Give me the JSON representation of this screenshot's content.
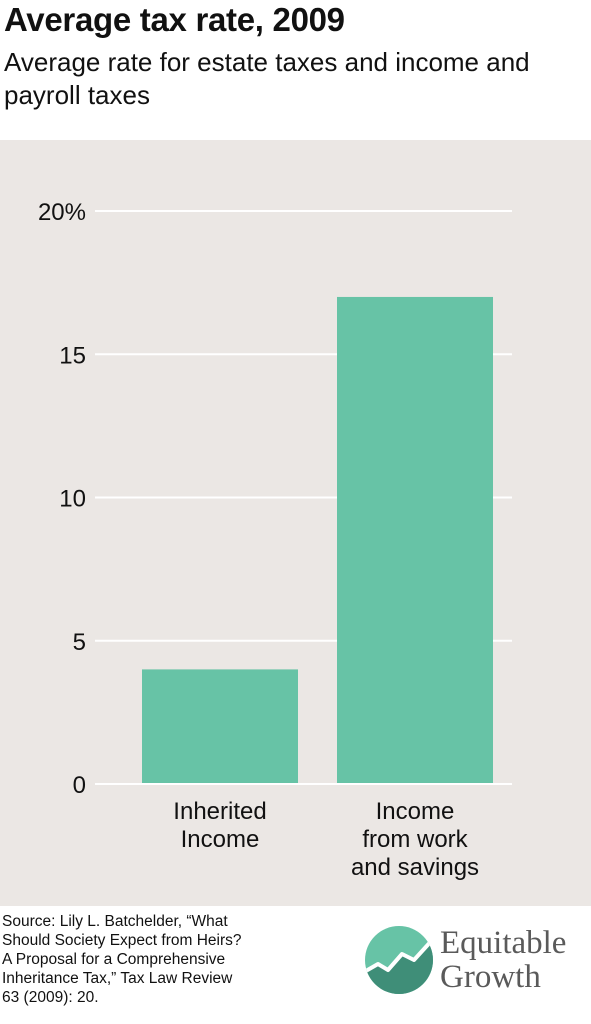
{
  "header": {
    "title": "Average tax rate, 2009",
    "subtitle": "Average rate for estate taxes and income and payroll taxes"
  },
  "chart_data": {
    "type": "bar",
    "categories": [
      [
        "Inherited",
        "Income"
      ],
      [
        "Income",
        "from work",
        "and savings"
      ]
    ],
    "values": [
      4,
      17
    ],
    "ylim": [
      0,
      20
    ],
    "yticks": [
      0,
      5,
      10,
      15,
      20
    ],
    "ytick_labels": [
      "0",
      "5",
      "10",
      "15",
      "20%"
    ],
    "grid": true,
    "colors": {
      "bar": "#67c3a6",
      "background": "#ebe7e4",
      "grid": "#ffffff"
    }
  },
  "footer": {
    "source": "Source: Lily L. Batchelder, “What\nShould Society Expect from Heirs?\nA Proposal for a Comprehensive\nInheritance Tax,” Tax Law Review\n63 (2009): 20.",
    "brand_line1": "Equitable",
    "brand_line2": "Growth"
  }
}
